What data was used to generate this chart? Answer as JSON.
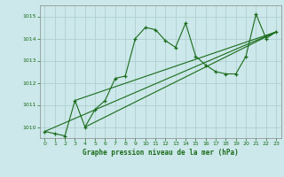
{
  "title": "Graphe pression niveau de la mer (hPa)",
  "bg_color": "#cce8ea",
  "grid_color": "#b0d0d0",
  "line_color": "#1a6b1a",
  "xlim": [
    -0.5,
    23.5
  ],
  "ylim": [
    1009.5,
    1015.5
  ],
  "yticks": [
    1010,
    1011,
    1012,
    1013,
    1014,
    1015
  ],
  "xticks": [
    0,
    1,
    2,
    3,
    4,
    5,
    6,
    7,
    8,
    9,
    10,
    11,
    12,
    13,
    14,
    15,
    16,
    17,
    18,
    19,
    20,
    21,
    22,
    23
  ],
  "main_x": [
    0,
    1,
    2,
    3,
    4,
    5,
    6,
    7,
    8,
    9,
    10,
    11,
    12,
    13,
    14,
    15,
    16,
    17,
    18,
    19,
    20,
    21,
    22,
    23
  ],
  "main_y": [
    1009.8,
    1009.7,
    1009.6,
    1011.2,
    1010.0,
    1010.8,
    1011.2,
    1012.2,
    1012.3,
    1014.0,
    1014.5,
    1014.4,
    1013.9,
    1013.6,
    1014.7,
    1013.2,
    1012.8,
    1012.5,
    1012.4,
    1012.4,
    1013.2,
    1015.1,
    1014.0,
    1014.3
  ],
  "trend1_x": [
    0,
    23
  ],
  "trend1_y": [
    1009.8,
    1014.3
  ],
  "trend2_x": [
    3,
    23
  ],
  "trend2_y": [
    1011.2,
    1014.3
  ],
  "trend3_x": [
    4,
    23
  ],
  "trend3_y": [
    1010.0,
    1014.3
  ]
}
